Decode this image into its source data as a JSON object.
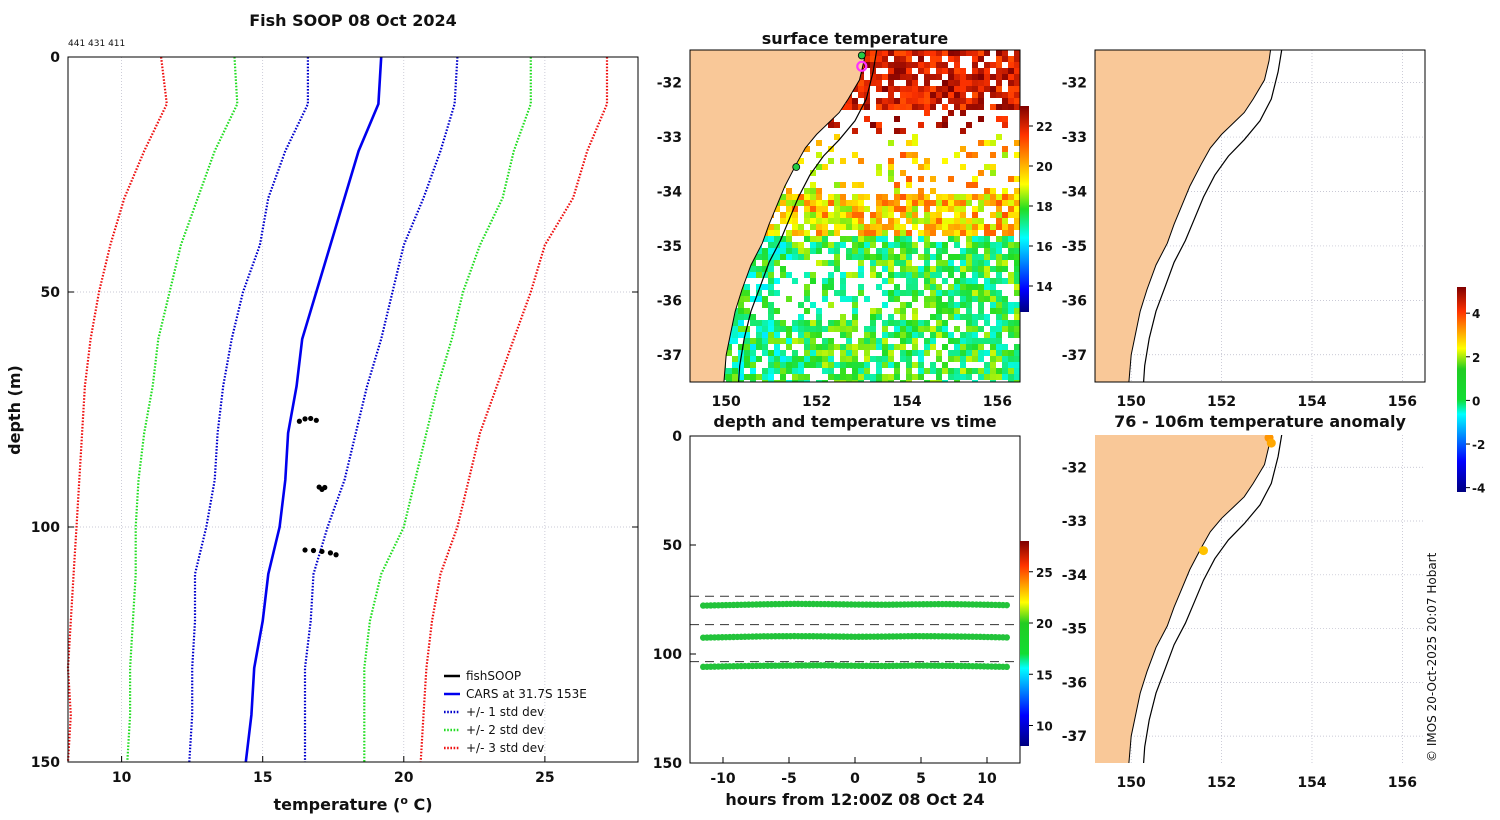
{
  "figure": {
    "main_title": "Fish SOOP 08 Oct 2024",
    "id_label": "441 431 411",
    "credit": "© IMOS 20-Oct-2025 20:07 Hobart"
  },
  "colors": {
    "fishsoop": "#000000",
    "cars": "#0000ee",
    "std1": "#0000cc",
    "std2": "#22dd22",
    "std3": "#ee1111",
    "land": "#f9c898",
    "coast": "#000000"
  },
  "chart_data": [
    {
      "id": "profile",
      "type": "line",
      "title": "Fish SOOP 08 Oct 2024",
      "xlabel": "temperature (",
      "xlabel_sup": "o",
      "xlabel_tail": " C)",
      "ylabel": "depth (m)",
      "xlim": [
        8.1,
        28.3
      ],
      "ylim": [
        0,
        150
      ],
      "yreversed": true,
      "xticks": [
        10,
        15,
        20,
        25
      ],
      "yticks": [
        0,
        50,
        100,
        150
      ],
      "depths": [
        0,
        10,
        20,
        30,
        40,
        50,
        60,
        70,
        80,
        90,
        100,
        110,
        120,
        130,
        140,
        150
      ],
      "series": [
        {
          "name": "CARS at 31.7S 153E",
          "style": "solid",
          "color_key": "cars",
          "values": [
            19.2,
            19.1,
            18.4,
            17.9,
            17.4,
            16.9,
            16.4,
            16.2,
            15.9,
            15.8,
            15.6,
            15.2,
            15.0,
            14.7,
            14.6,
            14.4
          ]
        },
        {
          "name": "+/- 1 std dev (upper)",
          "style": "dot",
          "color_key": "std1",
          "values": [
            21.9,
            21.8,
            21.3,
            20.7,
            20.0,
            19.6,
            19.2,
            18.7,
            18.3,
            17.9,
            17.3,
            16.8,
            16.7,
            16.5,
            16.5,
            16.5
          ]
        },
        {
          "name": "+/- 1 std dev (lower)",
          "style": "dot",
          "color_key": "std1",
          "values": [
            16.6,
            16.6,
            15.8,
            15.2,
            14.9,
            14.3,
            13.9,
            13.6,
            13.4,
            13.3,
            13.0,
            12.6,
            12.6,
            12.5,
            12.5,
            12.4
          ]
        },
        {
          "name": "+/- 2 std dev (upper)",
          "style": "dot",
          "color_key": "std2",
          "values": [
            24.5,
            24.5,
            23.9,
            23.5,
            22.7,
            22.1,
            21.7,
            21.2,
            20.8,
            20.4,
            20.0,
            19.2,
            18.8,
            18.6,
            18.6,
            18.6
          ]
        },
        {
          "name": "+/- 2 std dev (lower)",
          "style": "dot",
          "color_key": "std2",
          "values": [
            14.0,
            14.1,
            13.3,
            12.7,
            12.1,
            11.7,
            11.3,
            11.1,
            10.8,
            10.6,
            10.5,
            10.5,
            10.4,
            10.3,
            10.3,
            10.2
          ]
        },
        {
          "name": "+/- 3 std dev (upper)",
          "style": "dot",
          "color_key": "std3",
          "values": [
            27.2,
            27.2,
            26.5,
            26.0,
            25.0,
            24.5,
            23.9,
            23.3,
            22.7,
            22.3,
            21.9,
            21.3,
            21.0,
            20.8,
            20.7,
            20.6
          ]
        },
        {
          "name": "+/- 3 std dev (lower)",
          "style": "dot",
          "color_key": "std3",
          "values": [
            11.4,
            11.6,
            10.8,
            10.1,
            9.6,
            9.2,
            8.9,
            8.7,
            8.6,
            8.5,
            8.4,
            8.3,
            8.2,
            8.1,
            8.2,
            8.1
          ]
        }
      ],
      "fishsoop_points": [
        {
          "t": 16.3,
          "d": 77.5
        },
        {
          "t": 16.5,
          "d": 77.0
        },
        {
          "t": 16.7,
          "d": 76.9
        },
        {
          "t": 16.9,
          "d": 77.3
        },
        {
          "t": 17.0,
          "d": 91.5
        },
        {
          "t": 17.1,
          "d": 92.0
        },
        {
          "t": 17.2,
          "d": 91.6
        },
        {
          "t": 16.5,
          "d": 104.9
        },
        {
          "t": 16.8,
          "d": 105.0
        },
        {
          "t": 17.1,
          "d": 105.2
        },
        {
          "t": 17.4,
          "d": 105.5
        },
        {
          "t": 17.6,
          "d": 105.9
        }
      ],
      "legend": [
        {
          "label": "fishSOOP",
          "color_key": "fishsoop",
          "style": "solid"
        },
        {
          "label": "CARS at 31.7S 153E",
          "color_key": "cars",
          "style": "solid"
        },
        {
          "label": "+/- 1 std dev",
          "color_key": "std1",
          "style": "dot"
        },
        {
          "label": "+/- 2 std dev",
          "color_key": "std2",
          "style": "dot"
        },
        {
          "label": "+/- 3 std dev",
          "color_key": "std3",
          "style": "dot"
        }
      ]
    },
    {
      "id": "sst_map",
      "type": "heatmap",
      "title": "surface temperature",
      "xlim": [
        149.2,
        156.5
      ],
      "ylim": [
        -37.5,
        -31.4
      ],
      "xticks": [
        150,
        152,
        154,
        156
      ],
      "yticks": [
        -32,
        -33,
        -34,
        -35,
        -36,
        -37
      ],
      "colorbar": {
        "min": 12.7,
        "max": 23.0,
        "ticks": [
          14,
          16,
          18,
          20,
          22
        ]
      },
      "markers": [
        {
          "lon": 153.0,
          "lat": -31.7,
          "kind": "ring",
          "color": "#ff33ff"
        },
        {
          "lon": 153.0,
          "lat": -31.5,
          "kind": "dot",
          "color": "#22cc44"
        },
        {
          "lon": 151.55,
          "lat": -33.55,
          "kind": "dot",
          "color": "#22cc44"
        }
      ]
    },
    {
      "id": "depth_time",
      "type": "scatter",
      "title": "depth and temperature vs time",
      "xlabel": "hours from 12:00Z 08 Oct 24",
      "xlim": [
        -12.5,
        12.5
      ],
      "ylim": [
        0,
        150
      ],
      "yreversed": true,
      "xticks": [
        -10,
        -5,
        0,
        5,
        10
      ],
      "yticks": [
        0,
        50,
        100,
        150
      ],
      "reference_depths": [
        73.5,
        86.5,
        103.5
      ],
      "series": [
        {
          "name": "depth 1",
          "depths": [
            77.8,
            77.5,
            77.2,
            77.0,
            77.1,
            77.3,
            77.4,
            77.2,
            77.1,
            77.3,
            77.6
          ],
          "temp": 16.6
        },
        {
          "name": "depth 2",
          "depths": [
            92.5,
            92.2,
            91.9,
            91.8,
            91.9,
            92.1,
            92.0,
            91.8,
            91.9,
            92.1,
            92.4
          ],
          "temp": 17.1
        },
        {
          "name": "depth 3",
          "depths": [
            105.9,
            105.6,
            105.4,
            105.3,
            105.2,
            105.4,
            105.5,
            105.3,
            105.4,
            105.6,
            105.9
          ],
          "temp": 16.9
        }
      ],
      "hours": [
        -11.5,
        -9.2,
        -6.9,
        -4.6,
        -2.3,
        0,
        2.3,
        4.6,
        6.9,
        9.2,
        11.5
      ],
      "colorbar": {
        "min": 8,
        "max": 28,
        "ticks": [
          10,
          15,
          20,
          25
        ]
      }
    },
    {
      "id": "anom_map_top",
      "type": "scatter",
      "title": "",
      "xlim": [
        149.2,
        156.5
      ],
      "ylim": [
        -37.5,
        -31.4
      ],
      "xticks": [
        150,
        152,
        154,
        156
      ],
      "yticks": [
        -32,
        -33,
        -34,
        -35,
        -36,
        -37
      ]
    },
    {
      "id": "anom_map_bottom",
      "type": "scatter",
      "title": "76 - 106m temperature anomaly",
      "xlim": [
        149.2,
        156.5
      ],
      "ylim": [
        -37.5,
        -31.4
      ],
      "xticks": [
        150,
        152,
        154,
        156
      ],
      "yticks": [
        -32,
        -33,
        -34,
        -35,
        -36,
        -37
      ],
      "points": [
        {
          "lon": 153.05,
          "lat": -31.45,
          "anom": 2.8
        },
        {
          "lon": 153.1,
          "lat": -31.55,
          "anom": 2.6
        },
        {
          "lon": 151.6,
          "lat": -33.55,
          "anom": 2.3
        }
      ],
      "colorbar": {
        "min": -4.2,
        "max": 5.2,
        "ticks": [
          4,
          2,
          0,
          -2,
          -4
        ]
      }
    }
  ]
}
